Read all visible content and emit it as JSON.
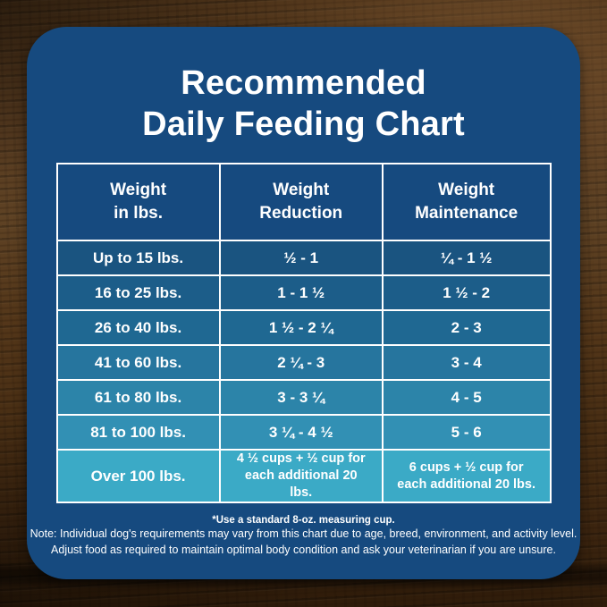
{
  "title": {
    "line1": "Recommended",
    "line2": "Daily Feeding Chart"
  },
  "table_headers": [
    {
      "line1": "Weight",
      "line2": "in lbs."
    },
    {
      "line1": "Weight",
      "line2": "Reduction"
    },
    {
      "line1": "Weight",
      "line2": "Maintenance"
    }
  ],
  "chart_data": {
    "type": "table",
    "title": "Recommended Daily Feeding Chart",
    "columns": [
      "Weight in lbs.",
      "Weight Reduction",
      "Weight Maintenance"
    ],
    "rows": [
      [
        "Up to 15 lbs.",
        "½ - 1",
        "¼ - 1 ½"
      ],
      [
        "16 to 25 lbs.",
        "1 - 1 ½",
        "1 ½ - 2"
      ],
      [
        "26 to 40 lbs.",
        "1 ½ - 2 ¼",
        "2 - 3"
      ],
      [
        "41 to 60 lbs.",
        "2 ¼ - 3",
        "3 - 4"
      ],
      [
        "61 to 80 lbs.",
        "3 - 3 ¼",
        "4 - 5"
      ],
      [
        "81 to 100 lbs.",
        "3 ¼ - 4 ½",
        "5 - 6"
      ],
      [
        "Over 100 lbs.",
        "4 ½ cups + ½ cup for each additional 20 lbs.",
        "6 cups + ½ cup for each additional 20 lbs."
      ]
    ],
    "footnote": "*Use a standard 8-oz. measuring cup."
  },
  "footnotes": {
    "measuring": "*Use a standard 8-oz. measuring cup.",
    "note_line1": "Note: Individual dog's requirements may vary from this chart due to age, breed, environment, and activity level.",
    "note_line2": "Adjust food as required to maintain optimal body condition and ask your veterinarian if you are unsure."
  },
  "colors": {
    "card_bg": "#164A7F",
    "header_cell_bg": "#164A7F",
    "table_border": "#FFFFFF",
    "text": "#FFFFFF",
    "row_backgrounds": [
      "#1A5480",
      "#1C5D89",
      "#1F6892",
      "#26759E",
      "#2C84A9",
      "#3290B4",
      "#3BAAC6"
    ]
  }
}
